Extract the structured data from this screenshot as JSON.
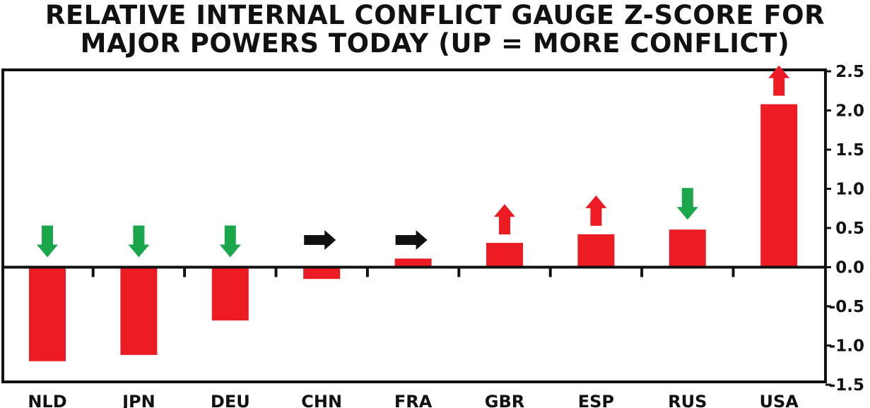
{
  "chart_data": {
    "type": "bar",
    "title": [
      "RELATIVE INTERNAL CONFLICT GAUGE Z-SCORE FOR",
      "MAJOR POWERS TODAY (UP = MORE CONFLICT)"
    ],
    "categories": [
      "NLD",
      "JPN",
      "DEU",
      "CHN",
      "FRA",
      "GBR",
      "ESP",
      "RUS",
      "USA"
    ],
    "values": [
      -1.2,
      -1.12,
      -0.68,
      -0.15,
      0.11,
      0.31,
      0.42,
      0.48,
      2.08
    ],
    "trend": [
      "down",
      "down",
      "down",
      "flat",
      "flat",
      "up",
      "up",
      "down",
      "up"
    ],
    "ylim": [
      -1.5,
      2.5
    ],
    "yticks": [
      "2.5",
      "2.0",
      "1.5",
      "1.0",
      "0.5",
      "0.0",
      "-0.5",
      "-1.0",
      "-1.5"
    ],
    "ytick_values": [
      2.5,
      2.0,
      1.5,
      1.0,
      0.5,
      0.0,
      -0.5,
      -1.0,
      -1.5
    ],
    "y_axis_position": "right",
    "grid": false,
    "colors": {
      "bar": "#ed1c24",
      "up": "#ed1c24",
      "down": "#1aa64a",
      "flat": "#111111"
    }
  }
}
